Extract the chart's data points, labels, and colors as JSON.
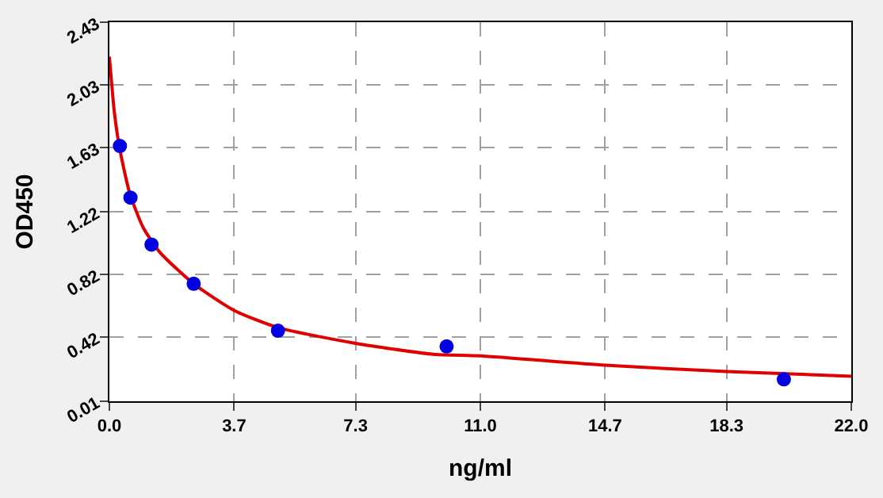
{
  "chart_data": {
    "type": "scatter",
    "xlabel": "ng/ml",
    "ylabel": "OD450",
    "xlim": [
      0,
      22
    ],
    "ylim": [
      0.01,
      2.43
    ],
    "xticks": [
      {
        "value": 0,
        "label": "0.0"
      },
      3.7,
      7.3,
      {
        "value": 11,
        "label": "11.0"
      },
      14.7,
      18.3,
      {
        "value": 22,
        "label": "22.0"
      }
    ],
    "yticks": [
      0.01,
      0.42,
      0.82,
      1.22,
      1.63,
      2.03,
      2.43
    ],
    "grid": true,
    "series": [
      {
        "type": "line",
        "color": "#e00000",
        "marker": "none",
        "line_style": "solid",
        "x": [
          0,
          0.15,
          0.3,
          0.6,
          1.0,
          1.5,
          2.5,
          3.7,
          5,
          7.3,
          9.6,
          11,
          14.7,
          18.3,
          22
        ],
        "values": [
          2.21,
          1.85,
          1.63,
          1.34,
          1.12,
          0.96,
          0.76,
          0.59,
          0.48,
          0.38,
          0.31,
          0.3,
          0.24,
          0.2,
          0.17
        ]
      },
      {
        "color": "#0000e0",
        "marker": "circle",
        "x": [
          0.3125,
          0.625,
          1.25,
          2.5,
          5,
          10,
          20
        ],
        "values": [
          1.64,
          1.31,
          1.01,
          0.76,
          0.46,
          0.36,
          0.15
        ]
      }
    ]
  }
}
